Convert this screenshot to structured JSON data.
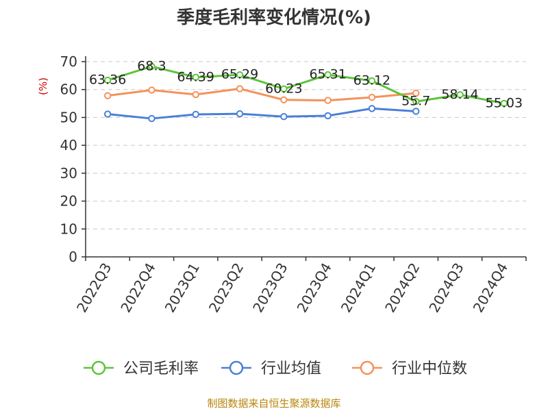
{
  "chart_data": {
    "type": "line",
    "title": "季度毛利率变化情况(%)",
    "ylabel": "(%)",
    "xlabel": "",
    "ylim": [
      0,
      70
    ],
    "yticks": [
      0,
      10,
      20,
      30,
      40,
      50,
      60,
      70
    ],
    "categories": [
      "2022Q3",
      "2022Q4",
      "2023Q1",
      "2023Q2",
      "2023Q3",
      "2023Q4",
      "2024Q1",
      "2024Q2",
      "2024Q3",
      "2024Q4"
    ],
    "grid": true,
    "legend_position": "bottom",
    "series": [
      {
        "name": "公司毛利率",
        "color": "#5cc43a",
        "values": [
          63.36,
          68.3,
          64.39,
          65.29,
          60.23,
          65.31,
          63.12,
          55.7,
          58.14,
          55.03
        ],
        "labels": [
          "63.36",
          "68.3",
          "64.39",
          "65.29",
          "60.23",
          "65.31",
          "63.12",
          "55.7",
          "58.14",
          "55.03"
        ]
      },
      {
        "name": "行业均值",
        "color": "#4a7fdb",
        "values": [
          51.2,
          49.6,
          51.1,
          51.3,
          50.3,
          50.6,
          53.2,
          52.2,
          null,
          null
        ]
      },
      {
        "name": "行业中位数",
        "color": "#f5915a",
        "values": [
          57.8,
          59.8,
          58.2,
          60.3,
          56.3,
          56.1,
          57.2,
          58.7,
          null,
          null
        ]
      }
    ],
    "source": "制图数据来自恒生聚源数据库"
  }
}
